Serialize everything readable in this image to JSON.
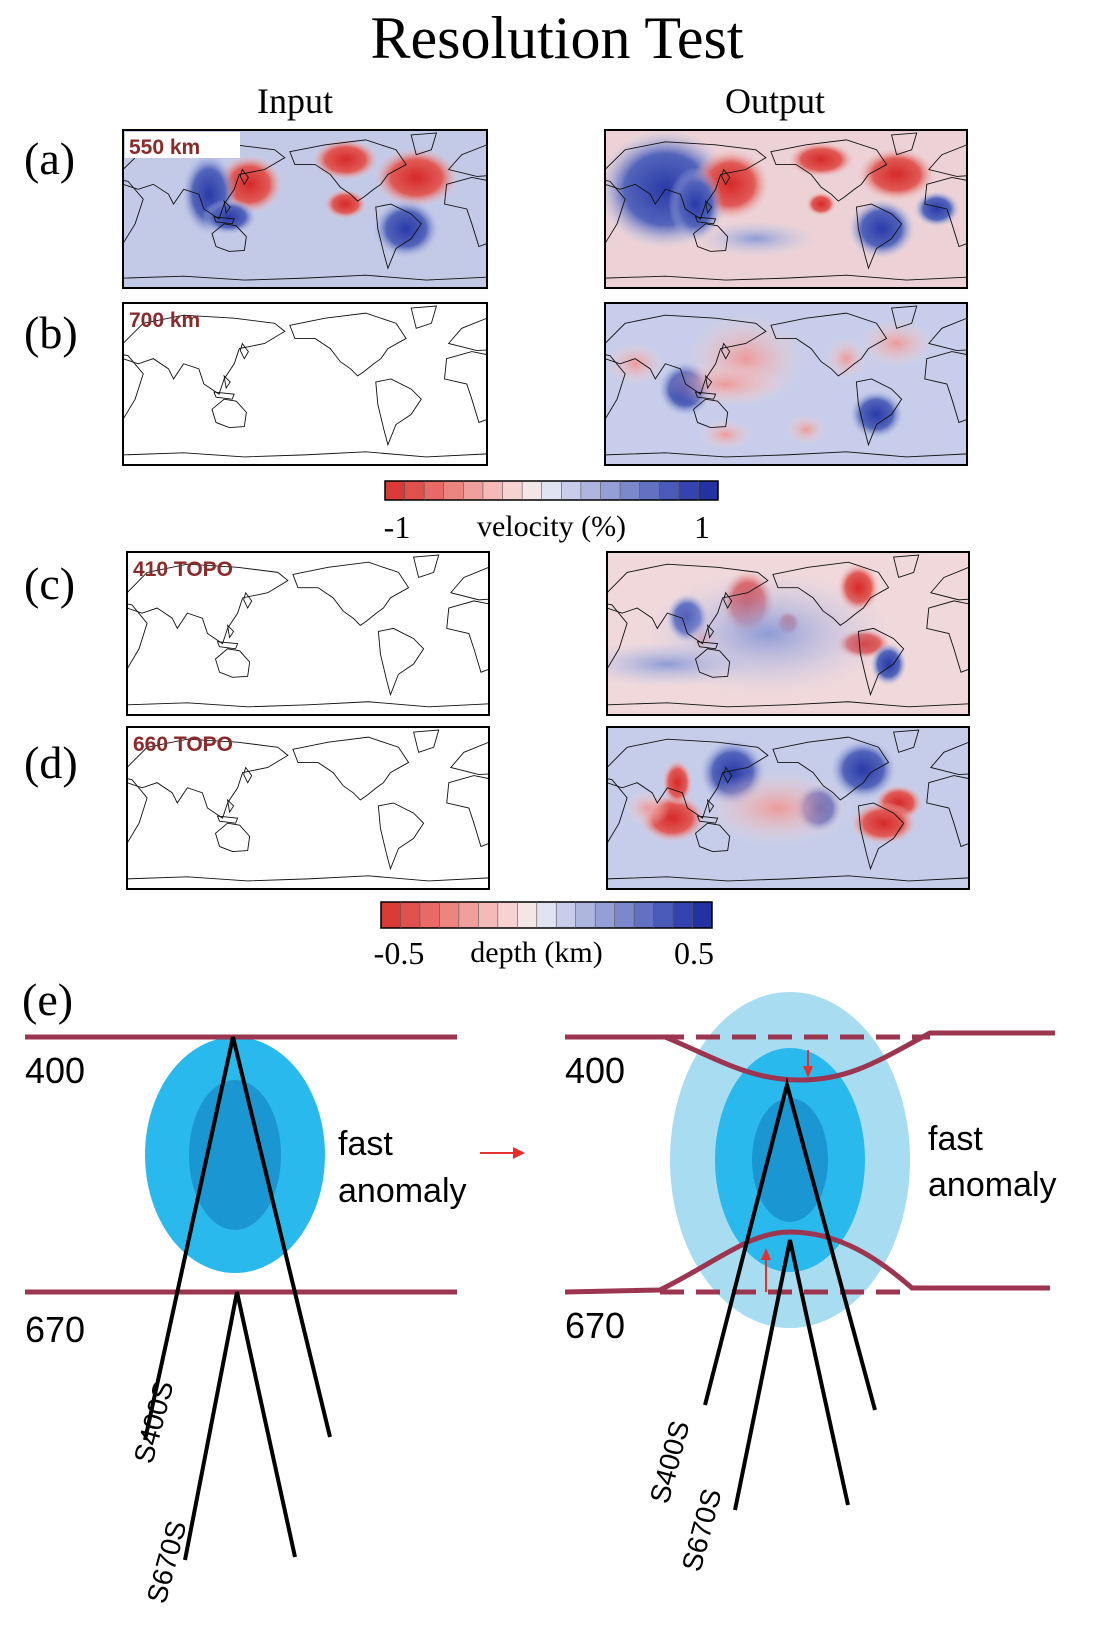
{
  "header": {
    "title": "Resolution Test",
    "columns": [
      "Input",
      "Output"
    ]
  },
  "panels": [
    {
      "label": "(a)",
      "map_label": "550 km"
    },
    {
      "label": "(b)",
      "map_label": "700 km"
    },
    {
      "label": "(c)",
      "map_label": "410 TOPO"
    },
    {
      "label": "(d)",
      "map_label": "660 TOPO"
    }
  ],
  "colorbars": [
    {
      "title": "velocity (%)",
      "ticks": [
        "-1",
        "1"
      ]
    },
    {
      "title": "depth (km)",
      "ticks": [
        "-0.5",
        "0.5"
      ]
    }
  ],
  "sketch": {
    "label": "(e)",
    "depths": [
      "400",
      "670"
    ],
    "anomaly": [
      "fast",
      "anomaly"
    ],
    "rays": [
      "S400S",
      "S670S"
    ]
  }
}
